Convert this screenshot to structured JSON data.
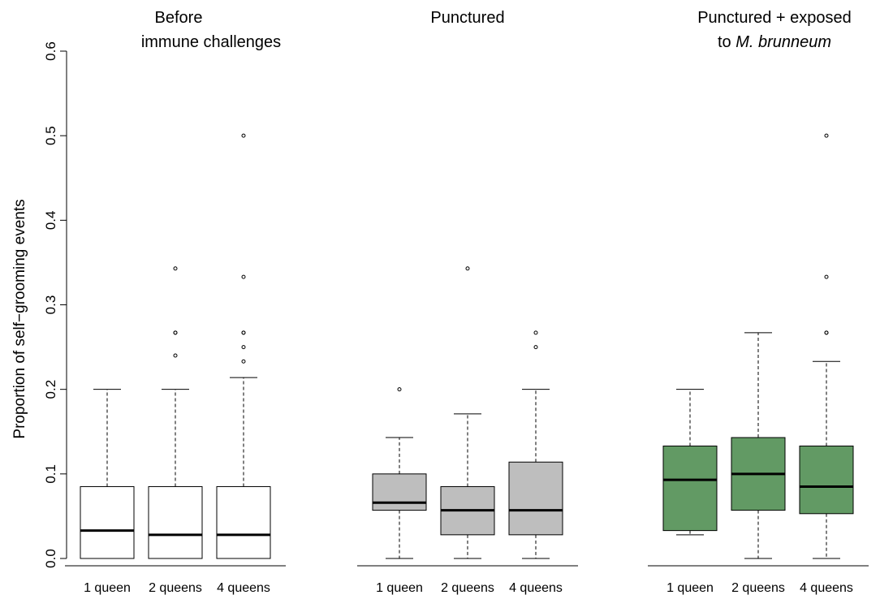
{
  "chart_data": {
    "type": "boxplot",
    "ylabel": "Proportion of self−grooming events",
    "ylim": [
      0,
      0.6
    ],
    "yticks": [
      "0.0",
      "0.1",
      "0.2",
      "0.3",
      "0.4",
      "0.5",
      "0.6"
    ],
    "yticks_values": [
      0,
      0.1,
      0.2,
      0.3,
      0.4,
      0.5,
      0.6
    ],
    "colors": {
      "before": "#ffffff",
      "punctured": "#bebebe",
      "exposed": "#629a64",
      "outline": "#000000"
    },
    "panels": [
      {
        "title_lines": [
          "Before",
          "immune challenges"
        ],
        "title_italic": "",
        "fill": "#ffffff",
        "categories": [
          "1 queen",
          "2 queens",
          "4 queens"
        ],
        "boxes": [
          {
            "whisker_low": 0,
            "q1": 0,
            "median": 0.033,
            "q3": 0.085,
            "whisker_high": 0.2,
            "outliers": []
          },
          {
            "whisker_low": 0,
            "q1": 0,
            "median": 0.028,
            "q3": 0.085,
            "whisker_high": 0.2,
            "outliers": [
              0.24,
              0.267,
              0.267,
              0.343
            ]
          },
          {
            "whisker_low": 0,
            "q1": 0,
            "median": 0.028,
            "q3": 0.085,
            "whisker_high": 0.214,
            "outliers": [
              0.233,
              0.25,
              0.267,
              0.267,
              0.333,
              0.5
            ]
          }
        ]
      },
      {
        "title_lines": [
          "Punctured"
        ],
        "title_italic": "",
        "fill": "#bebebe",
        "categories": [
          "1 queen",
          "2 queens",
          "4 queens"
        ],
        "boxes": [
          {
            "whisker_low": 0,
            "q1": 0.057,
            "median": 0.066,
            "q3": 0.1,
            "whisker_high": 0.143,
            "outliers": [
              0.2
            ]
          },
          {
            "whisker_low": 0,
            "q1": 0.028,
            "median": 0.057,
            "q3": 0.085,
            "whisker_high": 0.171,
            "outliers": [
              0.343
            ]
          },
          {
            "whisker_low": 0,
            "q1": 0.028,
            "median": 0.057,
            "q3": 0.114,
            "whisker_high": 0.2,
            "outliers": [
              0.25,
              0.267
            ]
          }
        ]
      },
      {
        "title_lines": [
          "Punctured + exposed",
          "to "
        ],
        "title_italic": "M. brunneum",
        "fill": "#629a64",
        "categories": [
          "1 queen",
          "2 queens",
          "4 queens"
        ],
        "boxes": [
          {
            "whisker_low": 0.028,
            "q1": 0.033,
            "median": 0.093,
            "q3": 0.133,
            "whisker_high": 0.2,
            "outliers": []
          },
          {
            "whisker_low": 0,
            "q1": 0.057,
            "median": 0.1,
            "q3": 0.143,
            "whisker_high": 0.267,
            "outliers": []
          },
          {
            "whisker_low": 0,
            "q1": 0.053,
            "median": 0.085,
            "q3": 0.133,
            "whisker_high": 0.233,
            "outliers": [
              0.267,
              0.267,
              0.333,
              0.5
            ]
          }
        ]
      }
    ]
  }
}
